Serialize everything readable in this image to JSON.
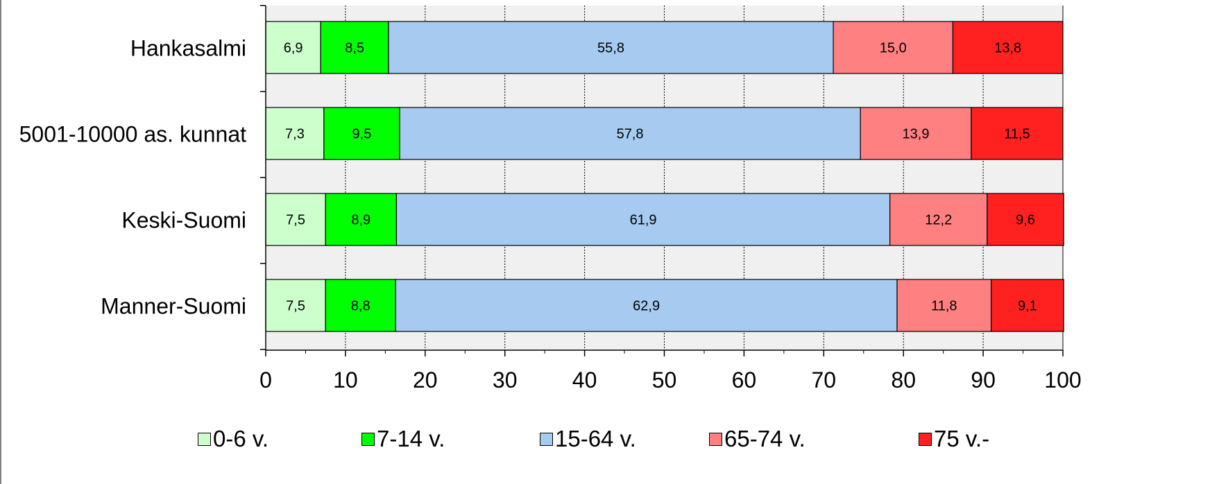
{
  "chart_data": {
    "type": "bar",
    "orientation": "horizontal",
    "stacked": true,
    "categories": [
      "Hankasalmi",
      "5001-10000 as. kunnat",
      "Keski-Suomi",
      "Manner-Suomi"
    ],
    "series": [
      {
        "name": "0-6 v.",
        "color": "#ccffcc",
        "values": [
          6.9,
          7.3,
          7.5,
          7.5
        ],
        "labels": [
          "6,9",
          "7,3",
          "7,5",
          "7,5"
        ]
      },
      {
        "name": "7-14 v.",
        "color": "#00ff00",
        "values": [
          8.5,
          9.5,
          8.9,
          8.8
        ],
        "labels": [
          "8,5",
          "9,5",
          "8,9",
          "8,8"
        ]
      },
      {
        "name": "15-64 v.",
        "color": "#a6caf0",
        "values": [
          55.8,
          57.8,
          61.9,
          62.9
        ],
        "labels": [
          "55,8",
          "57,8",
          "61,9",
          "62,9"
        ]
      },
      {
        "name": "65-74 v.",
        "color": "#ff8080",
        "values": [
          15.0,
          13.9,
          12.2,
          11.8
        ],
        "labels": [
          "15,0",
          "13,9",
          "12,2",
          "11,8"
        ]
      },
      {
        "name": "75 v.-",
        "color": "#ff2020",
        "values": [
          13.8,
          11.5,
          9.6,
          9.1
        ],
        "labels": [
          "13,8",
          "11,5",
          "9,6",
          "9,1"
        ]
      }
    ],
    "xlim": [
      0,
      100
    ],
    "xticks": [
      "0",
      "10",
      "20",
      "30",
      "40",
      "50",
      "60",
      "70",
      "80",
      "90",
      "100"
    ],
    "grid": true,
    "plot_background": "#f0f0f0",
    "legend_position": "bottom"
  }
}
